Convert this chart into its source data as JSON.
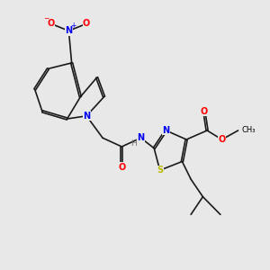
{
  "background_color": "#e8e8e8",
  "atom_colors": {
    "N": "#0000ee",
    "O": "#ff0000",
    "S": "#bbbb00",
    "C": "#000000",
    "H": "#777777"
  },
  "bond_color": "#1a1a1a",
  "bond_width": 1.2,
  "dbo": 0.035,
  "title": ""
}
